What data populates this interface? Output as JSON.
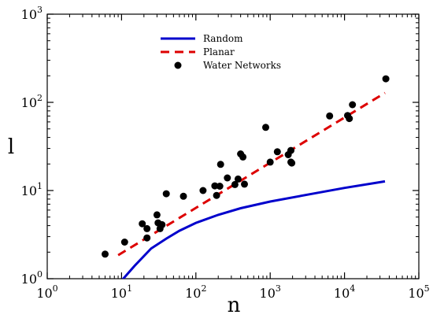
{
  "chart_data": {
    "type": "scatter",
    "xlabel": "n",
    "ylabel": "l",
    "xscale": "log",
    "yscale": "log",
    "xlim": [
      1,
      100000
    ],
    "ylim": [
      1,
      1000
    ],
    "x_ticks": [
      {
        "value": 1,
        "base": "10",
        "exp": "0"
      },
      {
        "value": 10,
        "base": "10",
        "exp": "1"
      },
      {
        "value": 100,
        "base": "10",
        "exp": "2"
      },
      {
        "value": 1000,
        "base": "10",
        "exp": "3"
      },
      {
        "value": 10000,
        "base": "10",
        "exp": "4"
      },
      {
        "value": 100000,
        "base": "10",
        "exp": "5"
      }
    ],
    "y_ticks": [
      {
        "value": 1,
        "base": "10",
        "exp": "0"
      },
      {
        "value": 10,
        "base": "10",
        "exp": "1"
      },
      {
        "value": 100,
        "base": "10",
        "exp": "2"
      },
      {
        "value": 1000,
        "base": "10",
        "exp": "3"
      }
    ],
    "grid": false,
    "legend_position": "top-center",
    "series": [
      {
        "name": "Random",
        "kind": "line",
        "style": "solid",
        "color": "#0000cc",
        "points": [
          [
            10,
            0.95
          ],
          [
            15,
            1.4
          ],
          [
            25,
            2.2
          ],
          [
            40,
            2.85
          ],
          [
            60,
            3.5
          ],
          [
            100,
            4.3
          ],
          [
            200,
            5.3
          ],
          [
            400,
            6.3
          ],
          [
            1000,
            7.5
          ],
          [
            3000,
            8.9
          ],
          [
            10000,
            10.7
          ],
          [
            35000,
            12.7
          ]
        ]
      },
      {
        "name": "Planar",
        "kind": "line",
        "style": "dashed",
        "color": "#dd0000",
        "points": [
          [
            9,
            1.85
          ],
          [
            35000,
            128
          ]
        ]
      },
      {
        "name": "Water Networks",
        "kind": "scatter",
        "color": "#000000",
        "points": [
          [
            6,
            1.9
          ],
          [
            11,
            2.6
          ],
          [
            19,
            4.2
          ],
          [
            22,
            3.7
          ],
          [
            22,
            2.9
          ],
          [
            30,
            5.3
          ],
          [
            31,
            4.3
          ],
          [
            33,
            3.7
          ],
          [
            35,
            4.1
          ],
          [
            40,
            9.2
          ],
          [
            68,
            8.6
          ],
          [
            125,
            10.0
          ],
          [
            180,
            11.3
          ],
          [
            190,
            8.8
          ],
          [
            210,
            11.2
          ],
          [
            215,
            19.8
          ],
          [
            265,
            13.9
          ],
          [
            335,
            11.7
          ],
          [
            370,
            13.5
          ],
          [
            400,
            26.0
          ],
          [
            430,
            24.0
          ],
          [
            450,
            11.8
          ],
          [
            870,
            52.0
          ],
          [
            1000,
            21.0
          ],
          [
            1250,
            27.5
          ],
          [
            1750,
            25.5
          ],
          [
            1900,
            28.5
          ],
          [
            1900,
            21.0
          ],
          [
            1950,
            20.5
          ],
          [
            6300,
            70.0
          ],
          [
            11000,
            71.0
          ],
          [
            11600,
            65.5
          ],
          [
            12800,
            94.0
          ],
          [
            36000,
            185.0
          ]
        ]
      }
    ]
  }
}
